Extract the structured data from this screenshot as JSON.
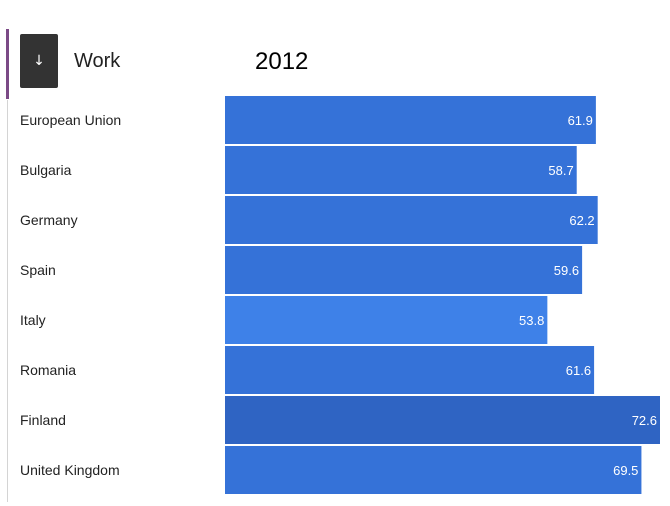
{
  "header": {
    "sort_icon": "arrow-down-icon",
    "sort_glyph": "↓",
    "title": "Work",
    "year": "2012"
  },
  "colors": {
    "bar": "#3572d8",
    "bar_highlight": "#3e81e8",
    "bar_dark": "#2f64c3"
  },
  "chart_data": {
    "type": "bar",
    "orientation": "horizontal",
    "title": "",
    "categories": [
      "European Union",
      "Bulgaria",
      "Germany",
      "Spain",
      "Italy",
      "Romania",
      "Finland",
      "United Kingdom"
    ],
    "values": [
      61.9,
      58.7,
      62.2,
      59.6,
      53.8,
      61.6,
      72.6,
      69.5
    ],
    "value_labels": [
      "61.9",
      "58.7",
      "62.2",
      "59.6",
      "53.8",
      "61.6",
      "72.6",
      "69.5"
    ],
    "bar_colors": [
      "#3572d8",
      "#3572d8",
      "#3572d8",
      "#3572d8",
      "#3e81e8",
      "#3572d8",
      "#2f64c3",
      "#3572d8"
    ],
    "xlim": [
      0,
      72.6
    ],
    "grid": false,
    "legend": "none"
  }
}
